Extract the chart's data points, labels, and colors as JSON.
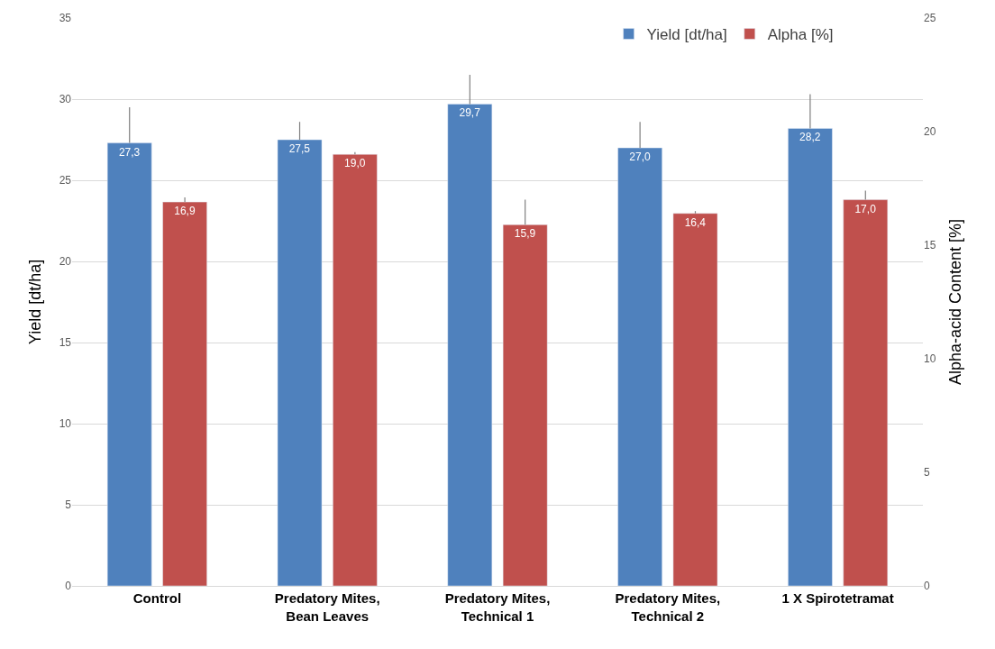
{
  "chart_data": {
    "type": "bar",
    "ylabel": "Yield [dt/ha]",
    "y2label": "Alpha-acid Content [%]",
    "categories": [
      "Control",
      "Predatory Mites,\nBean Leaves",
      "Predatory Mites,\nTechnical 1",
      "Predatory Mites,\nTechnical 2",
      "1 X Spirotetramat"
    ],
    "series": [
      {
        "name": "Yield [dt/ha]",
        "color": "#4f81bd",
        "values": [
          27.3,
          27.5,
          29.7,
          27.0,
          28.2
        ],
        "value_labels": [
          "27,3",
          "27,5",
          "29,7",
          "27,0",
          "28,2"
        ],
        "errors": [
          [
            27.3,
            29.5
          ],
          [
            27.5,
            28.6
          ],
          [
            29.7,
            31.5
          ],
          [
            27.0,
            28.6
          ],
          [
            28.2,
            30.3
          ]
        ]
      },
      {
        "name": "Alpha [%]",
        "color": "#c0504d",
        "axis": "y2",
        "values": [
          16.9,
          19.0,
          15.9,
          16.4,
          17.0
        ],
        "value_labels": [
          "16,9",
          "19,0",
          "15,9",
          "16,4",
          "17,0"
        ],
        "errors": [
          [
            16.9,
            17.1
          ],
          [
            19.0,
            19.1
          ],
          [
            15.9,
            17.0
          ],
          [
            16.4,
            16.5
          ],
          [
            17.0,
            17.4
          ]
        ]
      }
    ],
    "ylim": [
      0,
      35
    ],
    "yticks": [
      0,
      5,
      10,
      15,
      20,
      25,
      30,
      35
    ],
    "y2lim": [
      0,
      25
    ],
    "y2ticks": [
      0,
      5,
      10,
      15,
      20,
      25
    ],
    "grid": "y",
    "legend": "top right"
  }
}
